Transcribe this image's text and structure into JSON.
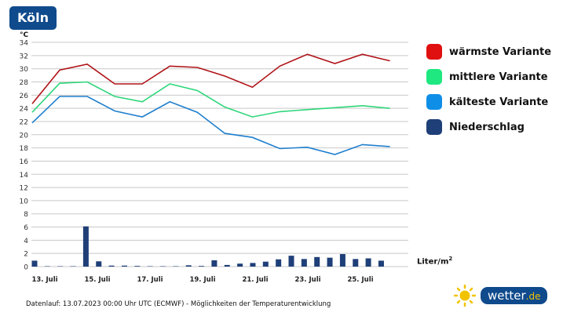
{
  "title": "Köln",
  "colors": {
    "warm": "#b01318",
    "mid": "#2ed67a",
    "cold": "#1f7fce",
    "precip": "#1f3f78",
    "brand": "#0f4a8c",
    "sun": "#f2c300"
  },
  "chart_data": {
    "type": "line+bar",
    "ylabel": "°C",
    "ylim": [
      0,
      34
    ],
    "yticks": [
      0,
      2,
      4,
      6,
      8,
      10,
      12,
      14,
      16,
      18,
      20,
      22,
      24,
      26,
      28,
      30,
      32,
      34
    ],
    "grid": true,
    "legend_position": "right",
    "xtick_labels": [
      "13. Juli",
      "15. Juli",
      "17. Juli",
      "19. Juli",
      "21. Juli",
      "23. Juli",
      "25. Juli"
    ],
    "series": [
      {
        "name": "wärmste Variante",
        "values": [
          24.7,
          29.8,
          30.7,
          27.7,
          27.7,
          30.4,
          30.2,
          28.9,
          27.2,
          30.4,
          32.2,
          30.8,
          32.2,
          31.2
        ]
      },
      {
        "name": "mittlere Variante",
        "values": [
          23.4,
          27.8,
          28.0,
          25.8,
          25.0,
          27.7,
          26.7,
          24.2,
          22.7,
          23.5,
          23.8,
          24.1,
          24.4,
          24.0
        ]
      },
      {
        "name": "kälteste Variante",
        "values": [
          21.8,
          25.8,
          25.8,
          23.6,
          22.7,
          25.0,
          23.4,
          20.2,
          19.6,
          17.9,
          18.1,
          17.0,
          18.5,
          18.2
        ]
      }
    ],
    "precip": {
      "name": "Niederschlag",
      "unit": "Liter/m",
      "unit_sup": "2",
      "values": [
        0.9,
        0,
        0,
        0,
        6.1,
        0.8,
        0.15,
        0.15,
        0.1,
        0,
        0,
        0,
        0.2,
        0.1,
        0.95,
        0.25,
        0.45,
        0.55,
        0.75,
        1.1,
        1.65,
        1.15,
        1.45,
        1.35,
        1.9,
        1.15,
        1.25,
        0.9
      ]
    }
  },
  "footer": "Datenlauf: 13.07.2023 00:00 Uhr UTC (ECMWF) - Möglichkeiten der Temperaturentwicklung",
  "logo": {
    "main": "wetter",
    "tld": ".de"
  }
}
